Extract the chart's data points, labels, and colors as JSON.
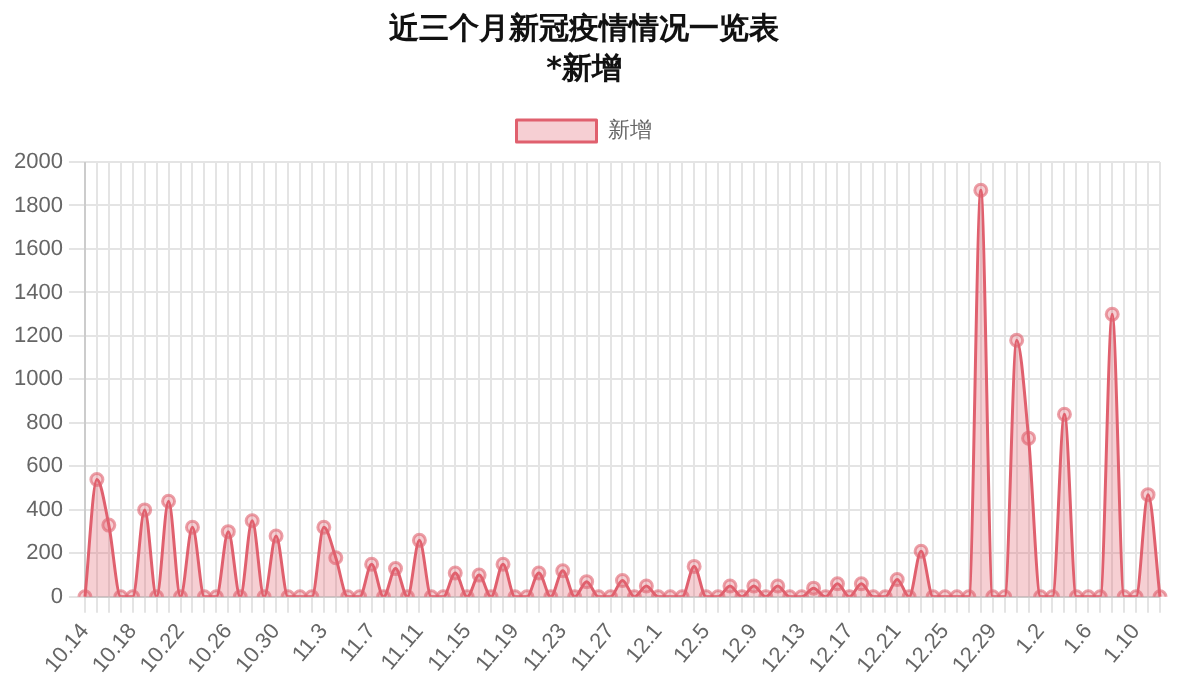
{
  "chart_data": {
    "type": "area",
    "title": "近三个月新冠疫情情况一览表",
    "subtitle": "*新增",
    "categories": [
      "10.14",
      null,
      null,
      null,
      "10.18",
      null,
      null,
      null,
      "10.22",
      null,
      null,
      null,
      "10.26",
      null,
      null,
      null,
      "10.30",
      null,
      null,
      null,
      "11.3",
      null,
      null,
      null,
      "11.7",
      null,
      null,
      null,
      "11.11",
      null,
      null,
      null,
      "11.15",
      null,
      null,
      null,
      "11.19",
      null,
      null,
      null,
      "11.23",
      null,
      null,
      null,
      "11.27",
      null,
      null,
      null,
      "12.1",
      null,
      null,
      null,
      "12.5",
      null,
      null,
      null,
      "12.9",
      null,
      null,
      null,
      "12.13",
      null,
      null,
      null,
      "12.17",
      null,
      null,
      null,
      "12.21",
      null,
      null,
      null,
      "12.25",
      null,
      null,
      null,
      "12.29",
      null,
      null,
      null,
      "1.2",
      null,
      null,
      null,
      "1.6",
      null,
      null,
      null,
      "1.10",
      null,
      null
    ],
    "series": [
      {
        "name": "新增",
        "color": "#e0606e",
        "values": [
          0,
          540,
          330,
          0,
          0,
          400,
          0,
          440,
          0,
          320,
          0,
          0,
          300,
          0,
          350,
          0,
          280,
          0,
          0,
          0,
          320,
          180,
          0,
          0,
          150,
          0,
          130,
          0,
          260,
          0,
          0,
          110,
          0,
          100,
          0,
          150,
          0,
          0,
          110,
          0,
          120,
          0,
          70,
          0,
          0,
          75,
          0,
          50,
          0,
          0,
          0,
          140,
          0,
          0,
          50,
          0,
          50,
          0,
          50,
          0,
          0,
          40,
          0,
          60,
          0,
          60,
          0,
          0,
          80,
          0,
          210,
          0,
          0,
          0,
          0,
          1870,
          0,
          0,
          1180,
          730,
          0,
          0,
          840,
          0,
          0,
          0,
          1300,
          0,
          0,
          470,
          0
        ]
      }
    ],
    "ylim": [
      0,
      2000
    ],
    "yticks": [
      0,
      200,
      400,
      600,
      800,
      1000,
      1200,
      1400,
      1600,
      1800,
      2000
    ],
    "grid": true,
    "legend": "top",
    "marker": "circle"
  }
}
